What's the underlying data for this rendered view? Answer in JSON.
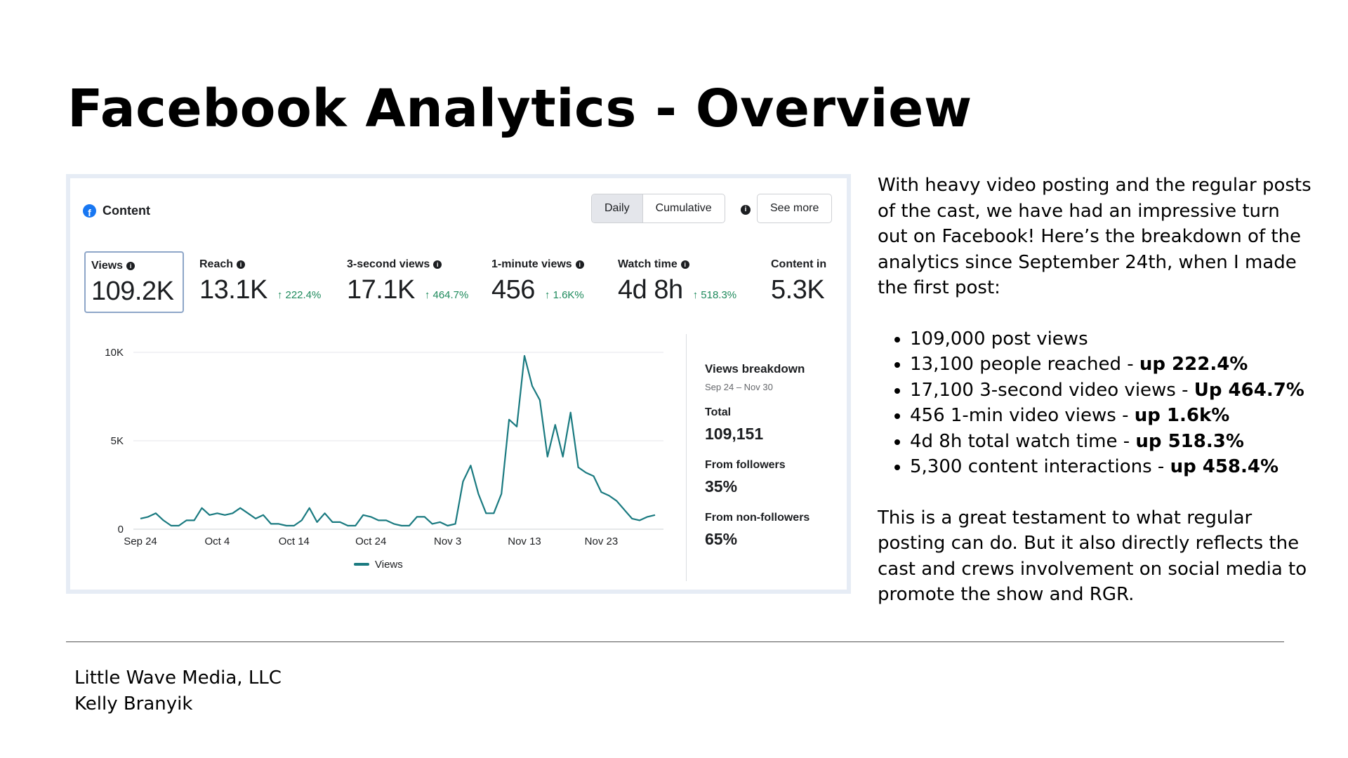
{
  "slide": {
    "title": "Facebook Analytics - Overview"
  },
  "panel": {
    "content_label": "Content",
    "toggle_daily": "Daily",
    "toggle_cumulative": "Cumulative",
    "info_glyph": "i",
    "see_more": "See more",
    "metrics": [
      {
        "label": "Views",
        "value": "109.2K",
        "change": ""
      },
      {
        "label": "Reach",
        "value": "13.1K",
        "change": "↑ 222.4%"
      },
      {
        "label": "3-second views",
        "value": "17.1K",
        "change": "↑ 464.7%"
      },
      {
        "label": "1-minute views",
        "value": "456",
        "change": "↑ 1.6K%"
      },
      {
        "label": "Watch time",
        "value": "4d 8h",
        "change": "↑ 518.3%"
      },
      {
        "label": "Content in",
        "value": "5.3K",
        "change": ""
      }
    ],
    "breakdown": {
      "title": "Views breakdown",
      "range": "Sep 24 – Nov 30",
      "total_label": "Total",
      "total_value": "109,151",
      "followers_label": "From followers",
      "followers_value": "35%",
      "nonfollowers_label": "From non-followers",
      "nonfollowers_value": "65%"
    },
    "colors": {
      "line": "#1a7a80",
      "grid": "#e4e6eb",
      "accent": "#1877f2",
      "positive": "#1e8a5c"
    }
  },
  "chart_data": {
    "type": "line",
    "title": "",
    "xlabel": "",
    "ylabel": "",
    "ylim": [
      0,
      10000
    ],
    "yticks": [
      0,
      5000,
      10000
    ],
    "ytick_labels": [
      "0",
      "5K",
      "10K"
    ],
    "xtick_labels": [
      "Sep 24",
      "Oct 4",
      "Oct 14",
      "Oct 24",
      "Nov 3",
      "Nov 13",
      "Nov 23"
    ],
    "xtick_days": [
      0,
      10,
      20,
      30,
      40,
      50,
      60
    ],
    "legend": "bottom",
    "grid": true,
    "series": [
      {
        "name": "Views",
        "x": [
          0,
          1,
          2,
          3,
          4,
          5,
          6,
          7,
          8,
          9,
          10,
          11,
          12,
          13,
          14,
          15,
          16,
          17,
          18,
          19,
          20,
          21,
          22,
          23,
          24,
          25,
          26,
          27,
          28,
          29,
          30,
          31,
          32,
          33,
          34,
          35,
          36,
          37,
          38,
          39,
          40,
          41,
          42,
          43,
          44,
          45,
          46,
          47,
          48,
          49,
          50,
          51,
          52,
          53,
          54,
          55,
          56,
          57,
          58,
          59,
          60,
          61,
          62,
          63,
          64,
          65,
          66,
          67
        ],
        "values": [
          600,
          700,
          900,
          500,
          200,
          200,
          500,
          500,
          1200,
          800,
          900,
          800,
          900,
          1200,
          900,
          600,
          800,
          300,
          300,
          200,
          200,
          500,
          1200,
          400,
          900,
          400,
          400,
          200,
          200,
          800,
          700,
          500,
          500,
          300,
          200,
          200,
          700,
          700,
          300,
          400,
          200,
          300,
          2700,
          3600,
          2000,
          900,
          900,
          2000,
          6200,
          5800,
          9800,
          8100,
          7300,
          4100,
          5900,
          4100,
          6600,
          3500,
          3200,
          3000,
          2100,
          1900,
          1600,
          1100,
          600,
          500,
          700,
          800
        ]
      }
    ]
  },
  "summary": {
    "intro": "With heavy video posting and the regular posts of the cast, we have had an impressive turn out on Facebook! Here’s the breakdown of the analytics since September 24th, when I made the first post:",
    "bullets": [
      {
        "text": "109,000 post views",
        "bold": ""
      },
      {
        "text": "13,100 people reached - ",
        "bold": "up 222.4%"
      },
      {
        "text": "17,100 3-second video views - ",
        "bold": "Up 464.7%"
      },
      {
        "text": "456 1-min video views - ",
        "bold": "up 1.6k%"
      },
      {
        "text": "4d 8h total watch time - ",
        "bold": "up 518.3%"
      },
      {
        "text": "5,300 content interactions - ",
        "bold": "up 458.4%"
      }
    ],
    "outro": "This is a great testament to what regular posting can do. But it also directly reflects the cast and crews involvement on social media to promote the show and RGR."
  },
  "footer": {
    "company": "Little Wave Media, LLC",
    "person": "Kelly Branyik"
  }
}
